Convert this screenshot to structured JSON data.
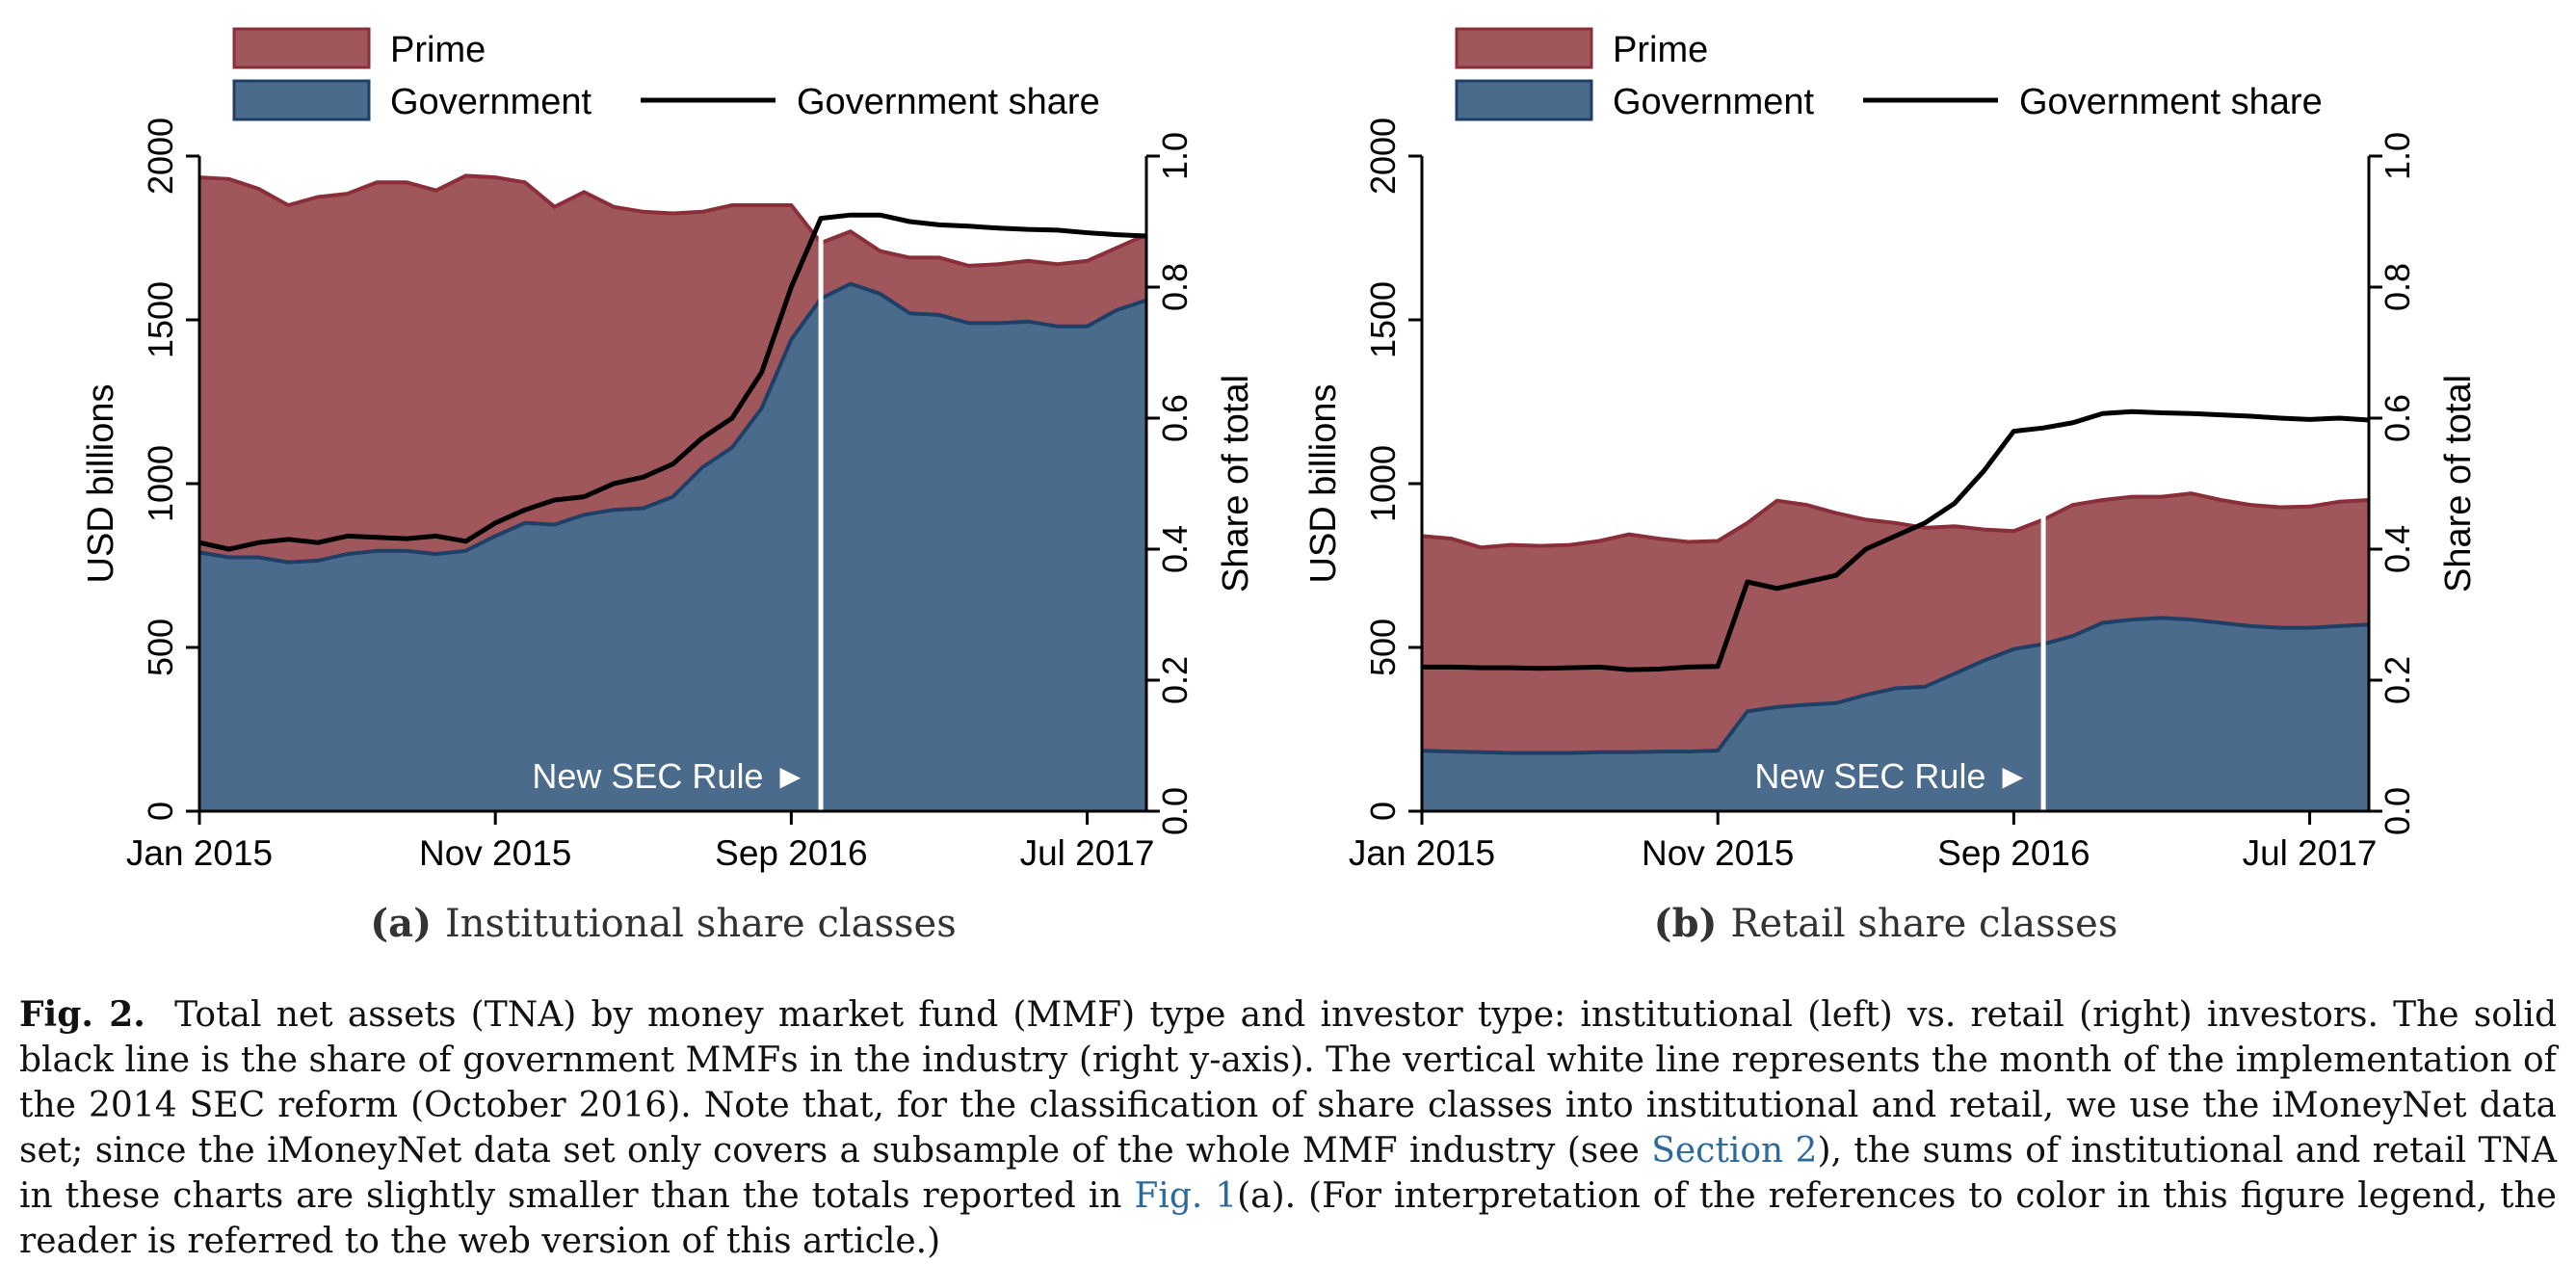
{
  "figure": {
    "caption_label": "Fig. 2.",
    "caption_text_1": "Total net assets (TNA) by money market fund (MMF) type and investor type: institutional (left) vs. retail (right) investors. The solid black line is the share of government MMFs in the industry (right y-axis). The vertical white line represents the month of the implementation of the 2014 SEC reform (October 2016). Note that, for the classification of share classes into institutional and retail, we use the iMoneyNet data set; since the iMoneyNet data set only covers a subsample of the whole MMF industry (see ",
    "caption_ref_1": "Section 2",
    "caption_text_2": "), the sums of institutional and retail TNA in these charts are slightly smaller than the totals reported in ",
    "caption_ref_2": "Fig. 1",
    "caption_text_3": "(a). (For interpretation of the references to color in this figure legend, the reader is referred to the web version of this article.)"
  },
  "colors": {
    "prime": "#a0575c",
    "government": "#4a6b8c",
    "prime_edge": "#8a2f39",
    "government_edge": "#1e3f66",
    "share_line": "#000000",
    "rule_line": "#ffffff"
  },
  "chart_data": [
    {
      "type": "area",
      "panel_label": "(a)",
      "panel_title": "Institutional share classes",
      "ylabel": "USD billions",
      "y2label": "Share of total",
      "ylim": [
        0,
        2000
      ],
      "y2lim": [
        0,
        1
      ],
      "yticks": [
        "0",
        "500",
        "1000",
        "1500",
        "2000"
      ],
      "y2ticks": [
        "0.0",
        "0.2",
        "0.4",
        "0.6",
        "0.8",
        "1.0"
      ],
      "xticks": [
        "Jan 2015",
        "Nov 2015",
        "Sep 2016",
        "Jul 2017"
      ],
      "xlim": [
        0,
        32
      ],
      "xtick_positions": [
        0,
        10,
        20,
        30
      ],
      "annotation": "New SEC Rule ►",
      "rule_x": 21,
      "legend": [
        "Prime",
        "Government",
        "Government share"
      ],
      "x": [
        0,
        1,
        2,
        3,
        4,
        5,
        6,
        7,
        8,
        9,
        10,
        11,
        12,
        13,
        14,
        15,
        16,
        17,
        18,
        19,
        20,
        21,
        22,
        23,
        24,
        25,
        26,
        27,
        28,
        29,
        30,
        31,
        32
      ],
      "series": [
        {
          "name": "Government",
          "values": [
            790,
            775,
            775,
            760,
            765,
            785,
            795,
            795,
            785,
            795,
            840,
            880,
            875,
            905,
            920,
            925,
            960,
            1050,
            1110,
            1230,
            1440,
            1565,
            1610,
            1580,
            1520,
            1515,
            1490,
            1490,
            1495,
            1480,
            1480,
            1530,
            1560
          ]
        },
        {
          "name": "Prime",
          "values": [
            1145,
            1155,
            1125,
            1090,
            1110,
            1100,
            1125,
            1125,
            1110,
            1145,
            1095,
            1040,
            970,
            985,
            925,
            905,
            865,
            780,
            740,
            620,
            410,
            170,
            160,
            130,
            170,
            175,
            175,
            180,
            185,
            190,
            200,
            190,
            200
          ]
        },
        {
          "name": "Government share",
          "axis": "right",
          "values": [
            0.41,
            0.4,
            0.41,
            0.415,
            0.41,
            0.42,
            0.418,
            0.416,
            0.42,
            0.412,
            0.44,
            0.46,
            0.475,
            0.48,
            0.5,
            0.51,
            0.53,
            0.57,
            0.6,
            0.67,
            0.8,
            0.905,
            0.91,
            0.91,
            0.9,
            0.895,
            0.893,
            0.89,
            0.888,
            0.887,
            0.883,
            0.88,
            0.878
          ]
        }
      ]
    },
    {
      "type": "area",
      "panel_label": "(b)",
      "panel_title": "Retail share classes",
      "ylabel": "USD billions",
      "y2label": "Share of total",
      "ylim": [
        0,
        2000
      ],
      "y2lim": [
        0,
        1
      ],
      "yticks": [
        "0",
        "500",
        "1000",
        "1500",
        "2000"
      ],
      "y2ticks": [
        "0.0",
        "0.2",
        "0.4",
        "0.6",
        "0.8",
        "1.0"
      ],
      "xticks": [
        "Jan 2015",
        "Nov 2015",
        "Sep 2016",
        "Jul 2017"
      ],
      "xlim": [
        0,
        32
      ],
      "xtick_positions": [
        0,
        10,
        20,
        30
      ],
      "annotation": "New SEC Rule ►",
      "rule_x": 21,
      "legend": [
        "Prime",
        "Government",
        "Government share"
      ],
      "x": [
        0,
        1,
        2,
        3,
        4,
        5,
        6,
        7,
        8,
        9,
        10,
        11,
        12,
        13,
        14,
        15,
        16,
        17,
        18,
        19,
        20,
        21,
        22,
        23,
        24,
        25,
        26,
        27,
        28,
        29,
        30,
        31,
        32
      ],
      "series": [
        {
          "name": "Government",
          "values": [
            185,
            182,
            180,
            178,
            178,
            178,
            180,
            180,
            182,
            182,
            185,
            305,
            318,
            325,
            330,
            355,
            375,
            380,
            420,
            460,
            495,
            510,
            535,
            575,
            585,
            590,
            585,
            575,
            565,
            560,
            560,
            565,
            570
          ]
        },
        {
          "name": "Prime",
          "values": [
            655,
            650,
            625,
            635,
            632,
            635,
            645,
            665,
            650,
            640,
            640,
            575,
            630,
            610,
            580,
            535,
            505,
            485,
            450,
            400,
            360,
            380,
            400,
            375,
            375,
            370,
            385,
            375,
            370,
            368,
            370,
            380,
            380
          ]
        },
        {
          "name": "Government share",
          "axis": "right",
          "values": [
            0.22,
            0.22,
            0.219,
            0.219,
            0.218,
            0.219,
            0.22,
            0.216,
            0.217,
            0.22,
            0.221,
            0.35,
            0.34,
            0.35,
            0.36,
            0.4,
            0.42,
            0.44,
            0.47,
            0.52,
            0.58,
            0.585,
            0.593,
            0.607,
            0.61,
            0.608,
            0.607,
            0.605,
            0.603,
            0.6,
            0.598,
            0.6,
            0.597
          ]
        }
      ]
    }
  ]
}
